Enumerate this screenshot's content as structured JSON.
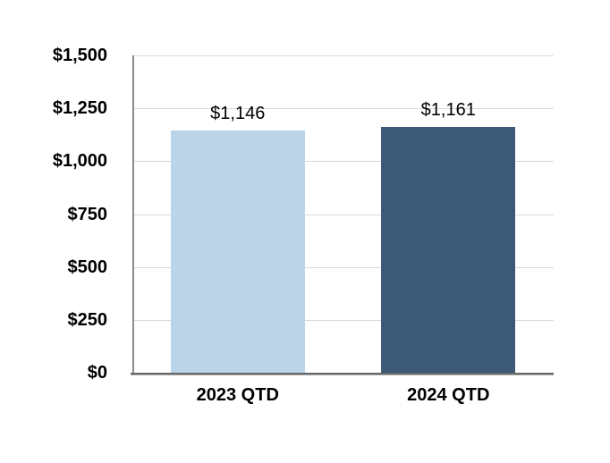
{
  "chart_data": {
    "type": "bar",
    "categories": [
      "2023 QTD",
      "2024 QTD"
    ],
    "values": [
      1146,
      1161
    ],
    "value_labels": [
      "$1,146",
      "$1,161"
    ],
    "bar_colors": [
      "#bbd4e8",
      "#3c5a76"
    ],
    "title": "",
    "xlabel": "",
    "ylabel": "",
    "ylim": [
      0,
      1500
    ],
    "ytick_interval": 250,
    "ytick_labels": [
      "$0",
      "$250",
      "$500",
      "$750",
      "$1,000",
      "$1,250",
      "$1,500"
    ],
    "grid": true,
    "legend": false
  },
  "colors": {
    "background": "#ffffff",
    "gridline": "#d9d9d9",
    "y_axis_line": "#8c8c8c",
    "x_axis_line": "#686868",
    "label_text": "#000000",
    "bar_light": "#bbd4e8",
    "bar_dark": "#3c5a76"
  }
}
